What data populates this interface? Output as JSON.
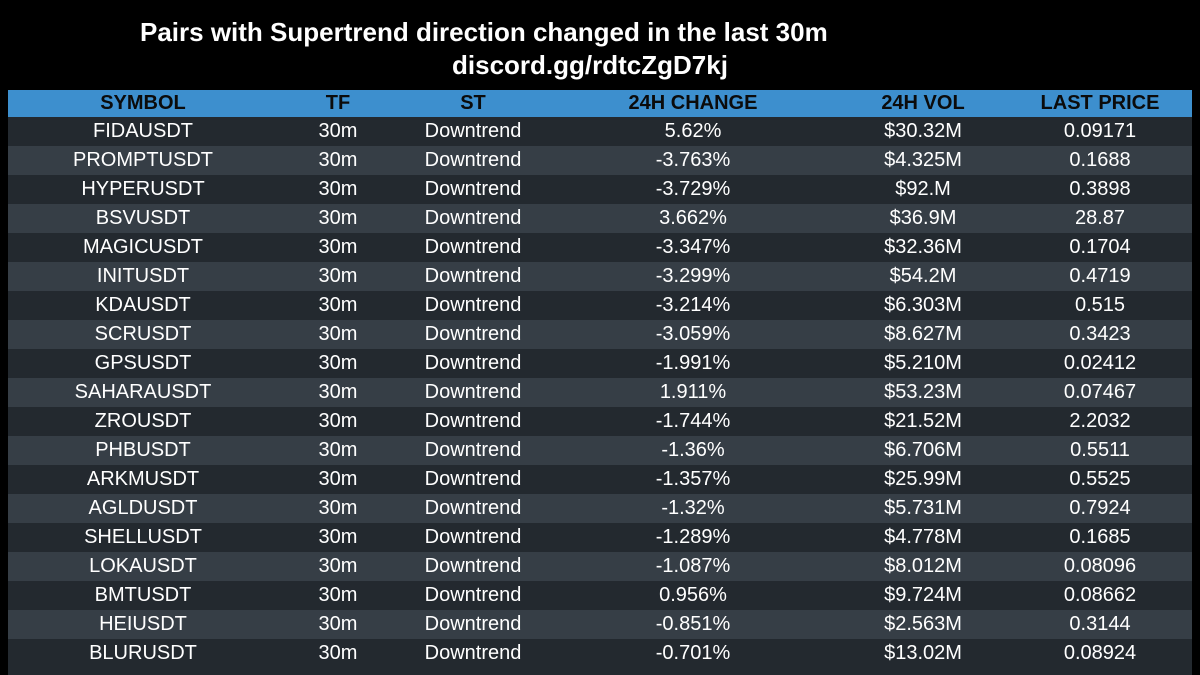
{
  "header": {
    "title_line1": "Pairs with Supertrend direction changed in the last 30m",
    "title_line2": "discord.gg/rdtcZgD7kj"
  },
  "colors": {
    "background": "#000000",
    "header_row": "#3d8fce",
    "row_dark": "#23292f",
    "row_light": "#363e46",
    "text": "#ffffff"
  },
  "table": {
    "columns": [
      "SYMBOL",
      "TF",
      "ST",
      "24H CHANGE",
      "24H VOL",
      "LAST PRICE"
    ],
    "rows": [
      [
        "FIDAUSDT",
        "30m",
        "Downtrend",
        "5.62%",
        "$30.32M",
        "0.09171"
      ],
      [
        "PROMPTUSDT",
        "30m",
        "Downtrend",
        "-3.763%",
        "$4.325M",
        "0.1688"
      ],
      [
        "HYPERUSDT",
        "30m",
        "Downtrend",
        "-3.729%",
        "$92.M",
        "0.3898"
      ],
      [
        "BSVUSDT",
        "30m",
        "Downtrend",
        "3.662%",
        "$36.9M",
        "28.87"
      ],
      [
        "MAGICUSDT",
        "30m",
        "Downtrend",
        "-3.347%",
        "$32.36M",
        "0.1704"
      ],
      [
        "INITUSDT",
        "30m",
        "Downtrend",
        "-3.299%",
        "$54.2M",
        "0.4719"
      ],
      [
        "KDAUSDT",
        "30m",
        "Downtrend",
        "-3.214%",
        "$6.303M",
        "0.515"
      ],
      [
        "SCRUSDT",
        "30m",
        "Downtrend",
        "-3.059%",
        "$8.627M",
        "0.3423"
      ],
      [
        "GPSUSDT",
        "30m",
        "Downtrend",
        "-1.991%",
        "$5.210M",
        "0.02412"
      ],
      [
        "SAHARAUSDT",
        "30m",
        "Downtrend",
        "1.911%",
        "$53.23M",
        "0.07467"
      ],
      [
        "ZROUSDT",
        "30m",
        "Downtrend",
        "-1.744%",
        "$21.52M",
        "2.2032"
      ],
      [
        "PHBUSDT",
        "30m",
        "Downtrend",
        "-1.36%",
        "$6.706M",
        "0.5511"
      ],
      [
        "ARKMUSDT",
        "30m",
        "Downtrend",
        "-1.357%",
        "$25.99M",
        "0.5525"
      ],
      [
        "AGLDUSDT",
        "30m",
        "Downtrend",
        "-1.32%",
        "$5.731M",
        "0.7924"
      ],
      [
        "SHELLUSDT",
        "30m",
        "Downtrend",
        "-1.289%",
        "$4.778M",
        "0.1685"
      ],
      [
        "LOKAUSDT",
        "30m",
        "Downtrend",
        "-1.087%",
        "$8.012M",
        "0.08096"
      ],
      [
        "BMTUSDT",
        "30m",
        "Downtrend",
        "0.956%",
        "$9.724M",
        "0.08662"
      ],
      [
        "HEIUSDT",
        "30m",
        "Downtrend",
        "-0.851%",
        "$2.563M",
        "0.3144"
      ],
      [
        "BLURUSDT",
        "30m",
        "Downtrend",
        "-0.701%",
        "$13.02M",
        "0.08924"
      ]
    ]
  }
}
